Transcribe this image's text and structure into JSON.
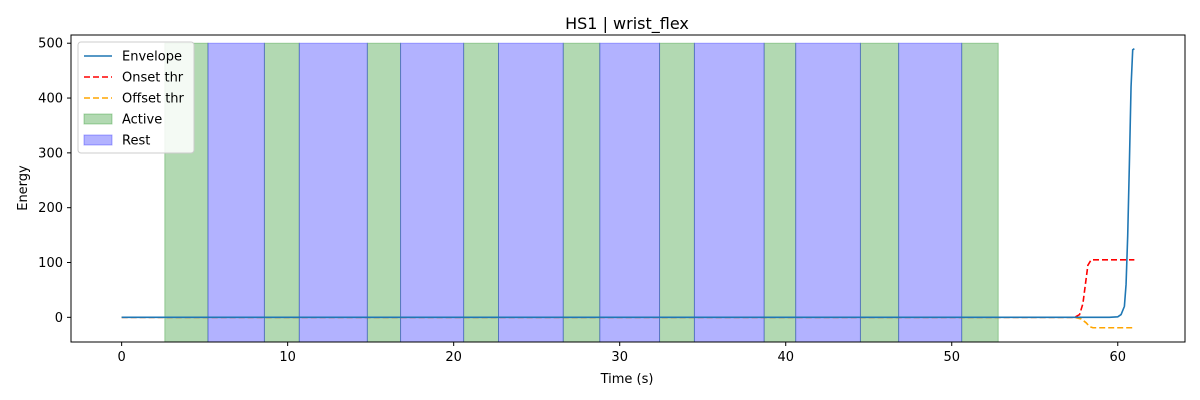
{
  "chart_data": {
    "type": "line",
    "title": "HS1 | wrist_flex",
    "xlabel": "Time (s)",
    "ylabel": "Energy",
    "xlim": [
      -3.05,
      64.05
    ],
    "ylim": [
      -45,
      515
    ],
    "xticks": [
      0,
      10,
      20,
      30,
      40,
      50,
      60
    ],
    "yticks": [
      0,
      100,
      200,
      300,
      400,
      500
    ],
    "grid": false,
    "legend_position": "top-left",
    "active_color": "#008000",
    "rest_color": "#0000ff",
    "active_intervals": [
      [
        2.6,
        5.2
      ],
      [
        8.6,
        10.7
      ],
      [
        14.8,
        16.8
      ],
      [
        20.6,
        22.7
      ],
      [
        26.6,
        28.8
      ],
      [
        32.4,
        34.5
      ],
      [
        38.7,
        40.6
      ],
      [
        44.5,
        46.8
      ],
      [
        50.6,
        52.8
      ]
    ],
    "rest_intervals": [
      [
        5.2,
        8.6
      ],
      [
        10.7,
        14.8
      ],
      [
        16.8,
        20.6
      ],
      [
        22.7,
        26.6
      ],
      [
        28.8,
        32.4
      ],
      [
        34.5,
        38.7
      ],
      [
        40.6,
        44.5
      ],
      [
        46.8,
        50.6
      ]
    ],
    "series": [
      {
        "name": "Envelope",
        "color": "#1f77b4",
        "dash": "solid",
        "x": [
          0,
          58.0,
          59.5,
          60.0,
          60.2,
          60.4,
          60.5,
          60.6,
          60.7,
          60.8,
          60.9,
          61.0
        ],
        "y": [
          0,
          0,
          0,
          1,
          5,
          20,
          60,
          150,
          280,
          420,
          488,
          490
        ]
      },
      {
        "name": "Onset thr",
        "color": "#ff0000",
        "dash": "dashed",
        "x": [
          0,
          57.4,
          57.7,
          57.9,
          58.05,
          58.2,
          58.4,
          61.0
        ],
        "y": [
          0,
          0,
          5,
          25,
          60,
          95,
          105,
          105
        ]
      },
      {
        "name": "Offset thr",
        "color": "#ffa500",
        "dash": "dashed",
        "x": [
          0,
          57.4,
          57.8,
          58.1,
          58.3,
          58.5,
          61.0
        ],
        "y": [
          0,
          0,
          -3,
          -10,
          -17,
          -19,
          -19
        ]
      }
    ],
    "legend": [
      {
        "label": "Envelope",
        "kind": "line",
        "color": "#1f77b4",
        "dash": "solid"
      },
      {
        "label": "Onset thr",
        "kind": "line",
        "color": "#ff0000",
        "dash": "dashed"
      },
      {
        "label": "Offset thr",
        "kind": "line",
        "color": "#ffa500",
        "dash": "dashed"
      },
      {
        "label": "Active",
        "kind": "patch",
        "color": "#008000"
      },
      {
        "label": "Rest",
        "kind": "patch",
        "color": "#0000ff"
      }
    ]
  }
}
